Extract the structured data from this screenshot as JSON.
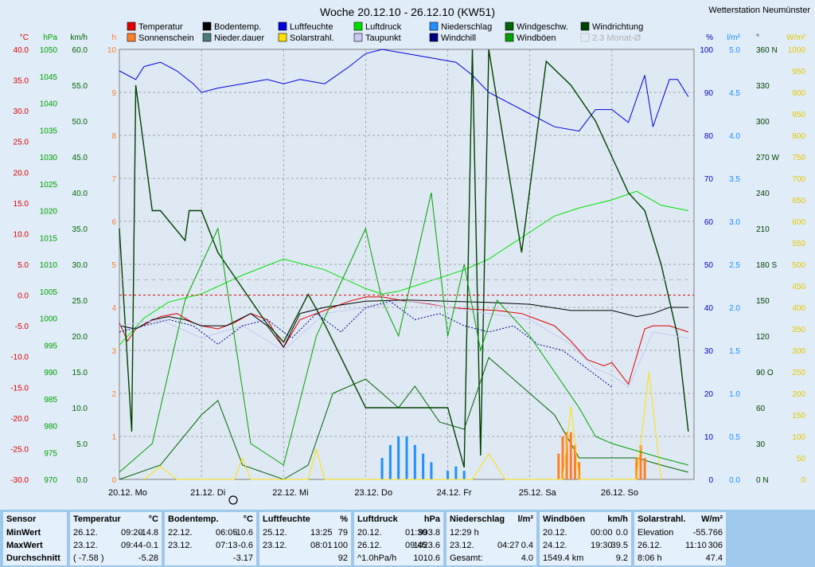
{
  "station": "Wetterstation Neumünster",
  "title": "Woche 20.12.10 - 26.12.10 (KW51)",
  "legend": [
    {
      "label": "Temperatur",
      "color": "#e00000"
    },
    {
      "label": "Bodentemp.",
      "color": "#000000"
    },
    {
      "label": "Luftfeuchte",
      "color": "#0000e0"
    },
    {
      "label": "Luftdruck",
      "color": "#00e000"
    },
    {
      "label": "Niederschlag",
      "color": "#1e90ff"
    },
    {
      "label": "Windgeschw.",
      "color": "#006400"
    },
    {
      "label": "Windrichtung",
      "color": "#004000"
    },
    {
      "label": "Sonnenschein",
      "color": "#ff7f27"
    },
    {
      "label": "Nieder.dauer",
      "color": "#4a7a7a"
    },
    {
      "label": "Solarstrahl.",
      "color": "#ffe000"
    },
    {
      "label": "Taupunkt",
      "color": "#c8c8f0"
    },
    {
      "label": "Windchill",
      "color": "#000080"
    },
    {
      "label": "Windböen",
      "color": "#00a000"
    },
    {
      "label": "2.3 Monat-Ø",
      "color": "#d0d0d0"
    }
  ],
  "axes": {
    "temp": {
      "unit": "°C",
      "color": "#e00000",
      "ticks": [
        "40.0",
        "35.0",
        "30.0",
        "25.0",
        "20.0",
        "15.0",
        "10.0",
        "5.0",
        "0.0",
        "-5.0",
        "-10.0",
        "-15.0",
        "-20.0",
        "-25.0",
        "-30.0"
      ]
    },
    "pressure": {
      "unit": "hPa",
      "color": "#00a000",
      "ticks": [
        "1050",
        "1045",
        "1040",
        "1035",
        "1030",
        "1025",
        "1020",
        "1015",
        "1010",
        "1005",
        "1000",
        "995",
        "990",
        "985",
        "980",
        "975",
        "970"
      ]
    },
    "wind": {
      "unit": "km/h",
      "color": "#006400",
      "ticks": [
        "60.0",
        "55.0",
        "50.0",
        "45.0",
        "40.0",
        "35.0",
        "30.0",
        "25.0",
        "20.0",
        "15.0",
        "10.0",
        "5.0",
        "0.0"
      ]
    },
    "sun": {
      "unit": "h",
      "color": "#ff7f27",
      "ticks": [
        "10",
        "9",
        "8",
        "7",
        "6",
        "5",
        "4",
        "3",
        "2",
        "1",
        "0"
      ]
    },
    "humidity": {
      "unit": "%",
      "color": "#0000c0",
      "ticks": [
        "100",
        "90",
        "80",
        "70",
        "60",
        "50",
        "40",
        "30",
        "20",
        "10",
        "0"
      ]
    },
    "rain": {
      "unit": "l/m²",
      "color": "#1e90ff",
      "ticks": [
        "5.0",
        "4.5",
        "4.0",
        "3.5",
        "3.0",
        "2.5",
        "2.0",
        "1.5",
        "1.0",
        "0.5",
        "0.0"
      ]
    },
    "direction": {
      "unit": "°",
      "color": "#004000",
      "ticks": [
        "360 N",
        "330",
        "300",
        "270 W",
        "240",
        "210",
        "180 S",
        "150",
        "120",
        "90 O",
        "60",
        "30",
        "0 N"
      ]
    },
    "solar": {
      "unit": "W/m²",
      "color": "#e8c800",
      "ticks": [
        "1000",
        "950",
        "900",
        "850",
        "800",
        "750",
        "700",
        "650",
        "600",
        "550",
        "500",
        "450",
        "400",
        "350",
        "300",
        "250",
        "200",
        "150",
        "100",
        "50",
        "0"
      ]
    }
  },
  "days": [
    "20.12. Mo",
    "21.12. Di",
    "22.12. Mi",
    "23.12. Do",
    "24.12. Fr",
    "25.12. Sa",
    "26.12. So"
  ],
  "chart_data": {
    "type": "line",
    "x_unit": "day",
    "series": [
      {
        "name": "Temperatur",
        "unit": "°C",
        "x": [
          0,
          0.1,
          0.2,
          0.35,
          0.5,
          0.7,
          0.9,
          1.0,
          1.2,
          1.4,
          1.6,
          1.8,
          2.0,
          2.2,
          2.5,
          2.8,
          3.0,
          3.2,
          3.5,
          3.8,
          4.0,
          4.3,
          4.6,
          4.9,
          5.1,
          5.3,
          5.5,
          5.7,
          5.9,
          6.0,
          6.2,
          6.4,
          6.5,
          6.7,
          6.93
        ],
        "values": [
          -4.5,
          -7.5,
          -5.5,
          -4.5,
          -3.5,
          -3.0,
          -4.5,
          -5.0,
          -5.5,
          -4.5,
          -3.0,
          -4.0,
          -8.5,
          -4.0,
          -2.5,
          -1.0,
          -0.3,
          -0.3,
          -1.0,
          -1.5,
          -2.0,
          -2.3,
          -2.5,
          -3.0,
          -4.0,
          -5.0,
          -7.5,
          -10.5,
          -11.5,
          -11.0,
          -14.5,
          -5.5,
          -5.0,
          -5.0,
          -6.0
        ]
      },
      {
        "name": "Bodentemp.",
        "unit": "°C",
        "x": [
          0,
          0.2,
          0.4,
          0.6,
          0.8,
          1.0,
          1.3,
          1.6,
          1.8,
          2.0,
          2.2,
          2.5,
          3.0,
          3.5,
          4.0,
          4.5,
          5.0,
          5.5,
          6.0,
          6.3,
          6.5,
          6.7,
          6.93
        ],
        "values": [
          -5.0,
          -5.5,
          -4.0,
          -3.5,
          -4.0,
          -5.0,
          -5.0,
          -3.0,
          -5.0,
          -8.5,
          -3.0,
          -2.0,
          -1.0,
          -0.8,
          -1.0,
          -1.2,
          -1.5,
          -2.5,
          -2.5,
          -3.5,
          -3.0,
          -2.0,
          -2.0
        ]
      },
      {
        "name": "Luftfeuchte",
        "unit": "%",
        "x": [
          0,
          0.2,
          0.3,
          0.5,
          0.7,
          0.9,
          1.0,
          1.2,
          1.5,
          1.8,
          2.0,
          2.2,
          2.5,
          2.8,
          3.0,
          3.2,
          3.5,
          3.8,
          4.1,
          4.3,
          4.5,
          4.8,
          5.0,
          5.3,
          5.6,
          5.8,
          6.0,
          6.2,
          6.4,
          6.5,
          6.7,
          6.8,
          6.93
        ],
        "values": [
          95,
          93,
          96,
          97,
          95,
          92,
          90,
          91,
          92,
          93,
          92,
          93,
          92,
          96,
          99,
          100,
          99,
          98,
          97,
          94,
          90,
          87,
          85,
          82,
          81,
          86,
          86,
          83,
          94,
          82,
          93,
          93,
          89
        ]
      },
      {
        "name": "Luftdruck",
        "unit": "hPa",
        "x": [
          0,
          0.3,
          0.6,
          1.0,
          1.5,
          2.0,
          2.5,
          3.0,
          3.2,
          3.4,
          3.6,
          3.8,
          4.2,
          4.5,
          5.0,
          5.3,
          5.6,
          6.0,
          6.3,
          6.6,
          6.93
        ],
        "values": [
          995,
          1000,
          1003,
          1004.5,
          1008,
          1011,
          1009,
          1005.5,
          1004.5,
          1005,
          1006,
          1007,
          1009,
          1011,
          1016,
          1019,
          1020.5,
          1022,
          1023.6,
          1021,
          1020
        ]
      },
      {
        "name": "Niederschlag",
        "unit": "l/m²",
        "x": [
          3.2,
          3.3,
          3.4,
          3.5,
          3.6,
          3.7,
          3.8,
          4.0,
          4.1,
          4.2
        ],
        "values": [
          0.25,
          0.4,
          0.5,
          0.5,
          0.4,
          0.3,
          0.2,
          0.1,
          0.15,
          0.1
        ]
      },
      {
        "name": "Windgeschw.",
        "unit": "km/h",
        "x": [
          0,
          0.5,
          1.0,
          1.2,
          1.5,
          2.0,
          2.3,
          2.6,
          3.0,
          3.4,
          3.6,
          3.9,
          4.2,
          4.5,
          5.0,
          5.3,
          5.6,
          6.0,
          6.3,
          6.6,
          6.93
        ],
        "values": [
          0,
          2,
          9,
          11,
          2,
          0,
          2,
          12,
          14,
          10,
          13,
          8,
          7,
          17,
          12,
          9,
          3,
          3,
          3,
          2,
          1
        ]
      },
      {
        "name": "Windrichtung",
        "unit": "°",
        "x": [
          0,
          0.15,
          0.2,
          0.4,
          0.5,
          0.8,
          0.85,
          1.0,
          1.2,
          1.3,
          1.4,
          1.6,
          1.8,
          2.0,
          2.3,
          2.5,
          3.0,
          3.5,
          4.0,
          4.2,
          4.3,
          4.4,
          4.5,
          4.9,
          5.2,
          5.5,
          5.8,
          6.0,
          6.2,
          6.4,
          6.6,
          6.8,
          6.93
        ],
        "values": [
          210,
          40,
          330,
          225,
          225,
          200,
          225,
          225,
          190,
          180,
          170,
          150,
          130,
          115,
          155,
          130,
          60,
          60,
          60,
          10,
          360,
          20,
          360,
          190,
          350,
          330,
          300,
          270,
          240,
          225,
          180,
          120,
          40
        ]
      },
      {
        "name": "Sonnenschein",
        "unit": "h",
        "x": [
          5.35,
          5.4,
          5.45,
          5.5,
          5.55,
          5.6,
          6.3,
          6.35,
          6.4
        ],
        "values": [
          0.6,
          1.0,
          1.1,
          1.1,
          0.8,
          0.4,
          0.5,
          0.8,
          0.5
        ]
      },
      {
        "name": "Solarstrahl.",
        "unit": "W/m²",
        "x": [
          0.3,
          0.5,
          0.7,
          1.4,
          1.5,
          1.6,
          2.3,
          2.4,
          2.5,
          4.3,
          4.5,
          4.7,
          5.4,
          5.5,
          5.6,
          6.3,
          6.45,
          6.6
        ],
        "values": [
          0,
          30,
          0,
          0,
          50,
          0,
          0,
          70,
          0,
          0,
          60,
          0,
          0,
          170,
          0,
          0,
          250,
          0
        ]
      },
      {
        "name": "Taupunkt",
        "unit": "°C",
        "x": [
          0,
          0.5,
          1.0,
          1.5,
          2.0,
          2.5,
          3.0,
          3.5,
          4.0,
          4.5,
          5.0,
          5.5,
          5.8,
          6.0,
          6.2,
          6.5,
          6.93
        ],
        "values": [
          -5,
          -4,
          -7,
          -5,
          -9,
          -3,
          -2,
          -1,
          -2,
          -3,
          -4,
          -8,
          -12,
          -13,
          -15,
          -6,
          -7
        ]
      },
      {
        "name": "Windchill",
        "unit": "°C",
        "x": [
          0,
          0.3,
          0.6,
          0.9,
          1.2,
          1.5,
          1.8,
          2.1,
          2.4,
          2.7,
          3.0,
          3.3,
          3.6,
          3.9,
          4.2,
          4.5,
          4.8,
          5.1,
          5.4,
          5.7,
          6.0
        ],
        "values": [
          -6,
          -5,
          -4,
          -5,
          -8,
          -5,
          -4,
          -7,
          -3,
          -6,
          -2,
          -1,
          -4,
          -3,
          -5,
          -6,
          -5,
          -8,
          -9,
          -12,
          -15
        ]
      },
      {
        "name": "Windböen",
        "unit": "km/h",
        "x": [
          0,
          0.4,
          0.6,
          0.8,
          1.0,
          1.2,
          1.4,
          1.6,
          2.0,
          2.4,
          2.8,
          3.0,
          3.2,
          3.4,
          3.6,
          3.8,
          4.0,
          4.2,
          4.4,
          4.6,
          5.0,
          5.3,
          5.6,
          5.8,
          6.0,
          6.3,
          6.6,
          6.93
        ],
        "values": [
          1,
          5,
          15,
          25,
          30,
          35,
          20,
          5,
          2,
          20,
          30,
          35,
          25,
          20,
          30,
          40,
          20,
          30,
          18,
          25,
          20,
          15,
          10,
          6,
          5,
          4,
          3,
          2
        ]
      },
      {
        "name": "2.3 Monat-Ø",
        "unit": "°C",
        "x": [
          0,
          6.93
        ],
        "values": [
          2.5,
          2.5
        ]
      }
    ]
  },
  "stats": {
    "sensor": {
      "title": "Sensor",
      "rows": [
        "MinWert",
        "MaxWert",
        "Durchschnitt"
      ]
    },
    "blocks": [
      {
        "title": "Temperatur",
        "unit": "°C",
        "rows": [
          [
            "26.12.",
            "09:20",
            "-14.8"
          ],
          [
            "23.12.",
            "09:44",
            "-0.1"
          ],
          [
            "( -7.58 )",
            "",
            "-5.28"
          ]
        ]
      },
      {
        "title": "Bodentemp.",
        "unit": "°C",
        "rows": [
          [
            "22.12.",
            "06:05",
            "-10.6"
          ],
          [
            "23.12.",
            "07:13",
            "-0.6"
          ],
          [
            "",
            "",
            "-3.17"
          ]
        ]
      },
      {
        "title": "Luftfeuchte",
        "unit": "%",
        "rows": [
          [
            "25.12.",
            "13:25",
            "79"
          ],
          [
            "23.12.",
            "08:01",
            "100"
          ],
          [
            "",
            "",
            "92"
          ]
        ]
      },
      {
        "title": "Luftdruck",
        "unit": "hPa",
        "rows": [
          [
            "20.12.",
            "01:30",
            "993.8"
          ],
          [
            "26.12.",
            "09:45",
            "1023.6"
          ],
          [
            "^1.0hPa/h",
            "",
            "1010.6"
          ]
        ]
      },
      {
        "title": "Niederschlag",
        "unit": "l/m²",
        "rows": [
          [
            "12:29 h",
            "",
            ""
          ],
          [
            "23.12.",
            "04:27",
            "0.4"
          ],
          [
            "Gesamt:",
            "",
            "4.0"
          ]
        ]
      },
      {
        "title": "Windböen",
        "unit": "km/h",
        "rows": [
          [
            "20.12.",
            "00:00",
            "0.0"
          ],
          [
            "24.12.",
            "19:30",
            "39.5"
          ],
          [
            "1549.4 km",
            "",
            "9.2"
          ]
        ]
      },
      {
        "title": "Solarstrahl.",
        "unit": "W/m²",
        "rows": [
          [
            "Elevation",
            "",
            "-55.766"
          ],
          [
            "26.12.",
            "11:10",
            "306"
          ],
          [
            "8:06 h",
            "",
            "47.4"
          ]
        ]
      }
    ]
  }
}
